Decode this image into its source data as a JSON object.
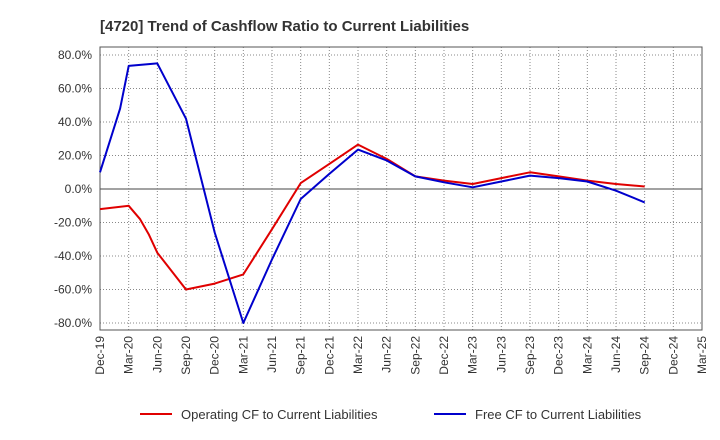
{
  "chart_data": {
    "type": "line",
    "title": "[4720]  Trend of Cashflow Ratio to Current Liabilities",
    "xlabel": "",
    "ylabel": "",
    "ylim": [
      -80,
      80
    ],
    "y_ticks": [
      "80.0%",
      "60.0%",
      "40.0%",
      "20.0%",
      "0.0%",
      "-20.0%",
      "-40.0%",
      "-60.0%",
      "-80.0%"
    ],
    "y_tick_values": [
      80,
      60,
      40,
      20,
      0,
      -20,
      -40,
      -60,
      -80
    ],
    "categories": [
      "Dec-19",
      "Mar-20",
      "Jun-20",
      "Sep-20",
      "Dec-20",
      "Mar-21",
      "Jun-21",
      "Sep-21",
      "Dec-21",
      "Mar-22",
      "Jun-22",
      "Sep-22",
      "Dec-22",
      "Mar-23",
      "Jun-23",
      "Sep-23",
      "Dec-23",
      "Mar-24",
      "Jun-24",
      "Sep-24",
      "Dec-24",
      "Mar-25"
    ],
    "grid": true,
    "grid_style": "dotted",
    "zero_line": true,
    "legend_position": "bottom",
    "series": [
      {
        "name": "Operating CF to Current Liabilities",
        "color": "#e00000",
        "points": [
          [
            0,
            -12
          ],
          [
            1,
            -10
          ],
          [
            1.4,
            -18
          ],
          [
            1.7,
            -27
          ],
          [
            2,
            -38
          ],
          [
            3,
            -60
          ],
          [
            4,
            -56.5
          ],
          [
            5,
            -51
          ],
          [
            6,
            -24
          ],
          [
            7,
            3.5
          ],
          [
            8,
            15
          ],
          [
            9,
            26.5
          ],
          [
            10,
            18
          ],
          [
            11,
            7.5
          ],
          [
            12,
            5
          ],
          [
            13,
            3
          ],
          [
            14,
            6.5
          ],
          [
            15,
            10
          ],
          [
            16,
            7.5
          ],
          [
            17,
            5
          ],
          [
            18,
            3
          ],
          [
            19,
            1.5
          ]
        ]
      },
      {
        "name": "Free CF to Current Liabilities",
        "color": "#0000cc",
        "points": [
          [
            0,
            10
          ],
          [
            0.7,
            48
          ],
          [
            1,
            73.5
          ],
          [
            2,
            75
          ],
          [
            3,
            42
          ],
          [
            4,
            -26
          ],
          [
            5,
            -80
          ],
          [
            6,
            -42
          ],
          [
            7,
            -6
          ],
          [
            8,
            9
          ],
          [
            9,
            23.5
          ],
          [
            10,
            17
          ],
          [
            11,
            7.5
          ],
          [
            12,
            4
          ],
          [
            13,
            1
          ],
          [
            14,
            4.5
          ],
          [
            15,
            8
          ],
          [
            16,
            6.5
          ],
          [
            17,
            4.5
          ],
          [
            18,
            -1
          ],
          [
            19,
            -8
          ]
        ]
      }
    ]
  }
}
